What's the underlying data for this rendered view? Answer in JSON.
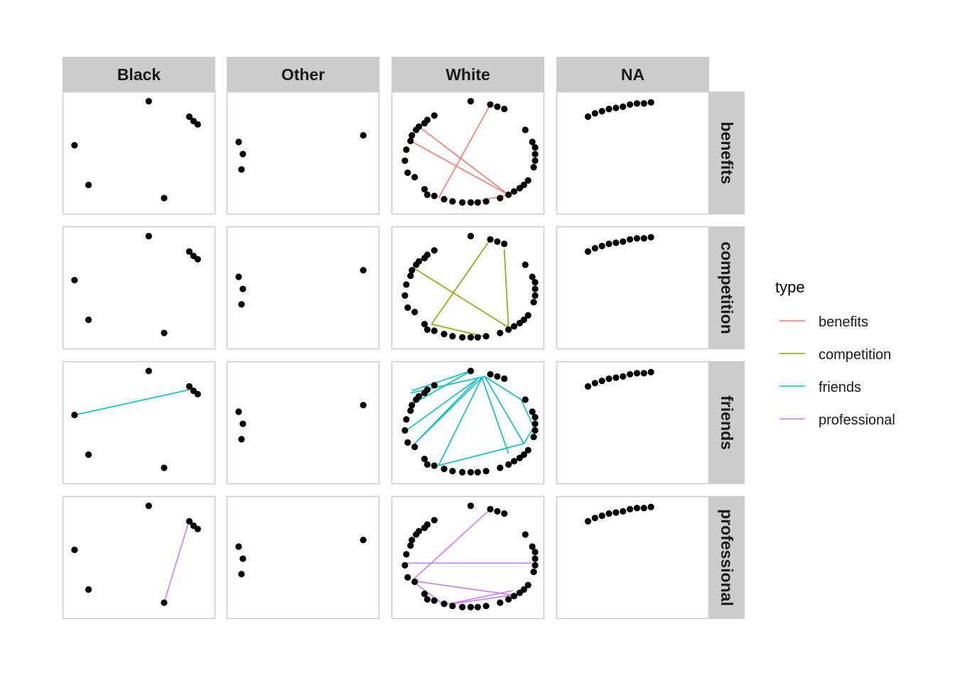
{
  "chart_data": {
    "type": "network-facet-grid",
    "column_facets": [
      "Black",
      "Other",
      "White",
      "NA"
    ],
    "row_facets": [
      "benefits",
      "competition",
      "friends",
      "professional"
    ],
    "legend": {
      "title": "type",
      "position": "right",
      "entries": [
        {
          "label": "benefits",
          "color": "#F8766D"
        },
        {
          "label": "competition",
          "color": "#7CAE00"
        },
        {
          "label": "friends",
          "color": "#00BFC4"
        },
        {
          "label": "professional",
          "color": "#C77CFF"
        }
      ]
    },
    "styles": {
      "node_color": "#000000",
      "strip_fill": "#CCCCCC",
      "panel_border": "#CCCCCC"
    },
    "nodes": {
      "Black": [
        [
          0.57,
          0.97
        ],
        [
          0.86,
          0.83
        ],
        [
          0.89,
          0.79
        ],
        [
          0.92,
          0.76
        ],
        [
          0.04,
          0.57
        ],
        [
          0.14,
          0.21
        ],
        [
          0.68,
          0.09
        ]
      ],
      "Other": [
        [
          0.04,
          0.6
        ],
        [
          0.07,
          0.49
        ],
        [
          0.06,
          0.35
        ],
        [
          0.93,
          0.66
        ]
      ],
      "White": [
        [
          0.52,
          0.97
        ],
        [
          0.66,
          0.94
        ],
        [
          0.71,
          0.92
        ],
        [
          0.76,
          0.9
        ],
        [
          0.91,
          0.71
        ],
        [
          0.96,
          0.6
        ],
        [
          0.98,
          0.55
        ],
        [
          0.98,
          0.49
        ],
        [
          0.98,
          0.43
        ],
        [
          0.97,
          0.37
        ],
        [
          0.93,
          0.25
        ],
        [
          0.9,
          0.21
        ],
        [
          0.87,
          0.18
        ],
        [
          0.83,
          0.15
        ],
        [
          0.79,
          0.12
        ],
        [
          0.73,
          0.09
        ],
        [
          0.63,
          0.06
        ],
        [
          0.57,
          0.05
        ],
        [
          0.52,
          0.05
        ],
        [
          0.46,
          0.05
        ],
        [
          0.39,
          0.06
        ],
        [
          0.33,
          0.08
        ],
        [
          0.26,
          0.11
        ],
        [
          0.21,
          0.12
        ],
        [
          0.19,
          0.17
        ],
        [
          0.12,
          0.28
        ],
        [
          0.07,
          0.32
        ],
        [
          0.05,
          0.43
        ],
        [
          0.06,
          0.53
        ],
        [
          0.09,
          0.61
        ],
        [
          0.1,
          0.66
        ],
        [
          0.13,
          0.71
        ],
        [
          0.15,
          0.74
        ],
        [
          0.19,
          0.77
        ],
        [
          0.21,
          0.8
        ],
        [
          0.26,
          0.84
        ]
      ],
      "NA": [
        [
          0.18,
          0.83
        ],
        [
          0.23,
          0.86
        ],
        [
          0.28,
          0.88
        ],
        [
          0.33,
          0.9
        ],
        [
          0.38,
          0.91
        ],
        [
          0.43,
          0.92
        ],
        [
          0.48,
          0.94
        ],
        [
          0.53,
          0.95
        ],
        [
          0.58,
          0.95
        ],
        [
          0.63,
          0.96
        ]
      ]
    },
    "edges": [
      {
        "type": "benefits",
        "column": "White",
        "from": [
          0.15,
          0.74
        ],
        "to": [
          0.79,
          0.12
        ]
      },
      {
        "type": "benefits",
        "column": "White",
        "from": [
          0.09,
          0.61
        ],
        "to": [
          0.79,
          0.12
        ]
      },
      {
        "type": "benefits",
        "column": "White",
        "from": [
          0.66,
          0.94
        ],
        "to": [
          0.29,
          0.09
        ]
      },
      {
        "type": "benefits",
        "column": "White",
        "from": [
          0.52,
          0.05
        ],
        "to": [
          0.79,
          0.12
        ]
      },
      {
        "type": "competition",
        "column": "White",
        "from": [
          0.66,
          0.94
        ],
        "to": [
          0.24,
          0.17
        ]
      },
      {
        "type": "competition",
        "column": "White",
        "from": [
          0.76,
          0.85
        ],
        "to": [
          0.79,
          0.14
        ]
      },
      {
        "type": "competition",
        "column": "White",
        "from": [
          0.1,
          0.69
        ],
        "to": [
          0.79,
          0.14
        ]
      },
      {
        "type": "competition",
        "column": "White",
        "from": [
          0.24,
          0.17
        ],
        "to": [
          0.61,
          0.06
        ]
      },
      {
        "type": "friends",
        "column": "Black",
        "from": [
          0.04,
          0.57
        ],
        "to": [
          0.86,
          0.8
        ]
      },
      {
        "type": "friends",
        "column": "White",
        "from": [
          0.52,
          0.97
        ],
        "to": [
          0.09,
          0.66
        ]
      },
      {
        "type": "friends",
        "column": "White",
        "from": [
          0.52,
          0.97
        ],
        "to": [
          0.1,
          0.79
        ]
      },
      {
        "type": "friends",
        "column": "White",
        "from": [
          0.57,
          0.9
        ],
        "to": [
          0.06,
          0.43
        ]
      },
      {
        "type": "friends",
        "column": "White",
        "from": [
          0.6,
          0.91
        ],
        "to": [
          0.12,
          0.31
        ]
      },
      {
        "type": "friends",
        "column": "White",
        "from": [
          0.6,
          0.91
        ],
        "to": [
          0.29,
          0.11
        ]
      },
      {
        "type": "friends",
        "column": "White",
        "from": [
          0.6,
          0.91
        ],
        "to": [
          0.79,
          0.22
        ]
      },
      {
        "type": "friends",
        "column": "White",
        "from": [
          0.62,
          0.92
        ],
        "to": [
          0.09,
          0.77
        ]
      },
      {
        "type": "friends",
        "column": "White",
        "from": [
          0.62,
          0.92
        ],
        "to": [
          0.88,
          0.71
        ]
      },
      {
        "type": "friends",
        "column": "White",
        "from": [
          0.88,
          0.71
        ],
        "to": [
          0.97,
          0.46
        ]
      },
      {
        "type": "friends",
        "column": "White",
        "from": [
          0.97,
          0.46
        ],
        "to": [
          0.9,
          0.31
        ]
      },
      {
        "type": "friends",
        "column": "White",
        "from": [
          0.9,
          0.31
        ],
        "to": [
          0.29,
          0.11
        ]
      },
      {
        "type": "friends",
        "column": "White",
        "from": [
          0.9,
          0.31
        ],
        "to": [
          0.62,
          0.92
        ]
      },
      {
        "type": "friends",
        "column": "White",
        "from": [
          0.12,
          0.31
        ],
        "to": [
          0.57,
          0.9
        ]
      },
      {
        "type": "professional",
        "column": "Black",
        "from": [
          0.85,
          0.8
        ],
        "to": [
          0.68,
          0.09
        ]
      },
      {
        "type": "professional",
        "column": "White",
        "from": [
          0.66,
          0.94
        ],
        "to": [
          0.1,
          0.29
        ]
      },
      {
        "type": "professional",
        "column": "White",
        "from": [
          0.06,
          0.45
        ],
        "to": [
          0.96,
          0.45
        ]
      },
      {
        "type": "professional",
        "column": "White",
        "from": [
          0.1,
          0.29
        ],
        "to": [
          0.33,
          0.07
        ]
      },
      {
        "type": "professional",
        "column": "White",
        "from": [
          0.1,
          0.29
        ],
        "to": [
          0.82,
          0.16
        ]
      },
      {
        "type": "professional",
        "column": "White",
        "from": [
          0.33,
          0.07
        ],
        "to": [
          0.82,
          0.2
        ]
      },
      {
        "type": "professional",
        "column": "White",
        "from": [
          0.39,
          0.08
        ],
        "to": [
          0.82,
          0.16
        ]
      }
    ]
  }
}
